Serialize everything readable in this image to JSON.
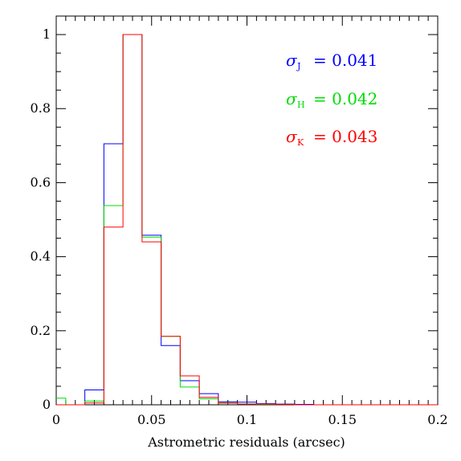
{
  "chart_data": {
    "type": "line",
    "title": "",
    "xlabel": "Astrometric residuals (arcsec)",
    "ylabel": "",
    "xlim": [
      0,
      0.2
    ],
    "ylim": [
      0,
      1.05
    ],
    "x_ticks": [
      "0",
      "0.05",
      "0.1",
      "0.15",
      "0.2"
    ],
    "y_ticks": [
      "0",
      "0.2",
      "0.4",
      "0.6",
      "0.8",
      "1"
    ],
    "bin_edges": [
      0,
      0.005,
      0.015,
      0.025,
      0.035,
      0.045,
      0.055,
      0.065,
      0.075,
      0.085,
      0.095,
      0.105,
      0.115,
      0.125,
      0.135,
      0.145,
      0.155,
      0.165,
      0.175,
      0.185,
      0.195,
      0.2
    ],
    "series": [
      {
        "color": "#0000ff",
        "values": [
          0.0,
          0.0,
          0.04,
          0.705,
          1.0,
          0.458,
          0.16,
          0.065,
          0.03,
          0.008,
          0.007,
          0.003,
          0.002,
          0.001,
          0.0,
          0.0,
          0.0,
          0.0,
          0.0,
          0.0,
          0.0
        ]
      },
      {
        "color": "#00dd00",
        "values": [
          0.018,
          0.0,
          0.01,
          0.538,
          1.0,
          0.453,
          0.185,
          0.048,
          0.016,
          0.004,
          0.002,
          0.001,
          0.001,
          0.0,
          0.0,
          0.0,
          0.0,
          0.0,
          0.0,
          0.0,
          0.0
        ]
      },
      {
        "color": "#ff0000",
        "values": [
          0.0,
          0.0,
          0.005,
          0.48,
          1.0,
          0.44,
          0.185,
          0.078,
          0.02,
          0.005,
          0.002,
          0.002,
          0.001,
          0.0,
          0.0,
          0.0,
          0.0,
          0.0,
          0.0,
          0.0,
          0.0
        ]
      }
    ],
    "annotations": [
      {
        "symbol": "σ",
        "sub": "J",
        "text": "= 0.041",
        "color": "#0000ff"
      },
      {
        "symbol": "σ",
        "sub": "H",
        "text": "= 0.042",
        "color": "#00dd00"
      },
      {
        "symbol": "σ",
        "sub": "K",
        "text": "= 0.043",
        "color": "#ff0000"
      }
    ],
    "grid": false
  }
}
